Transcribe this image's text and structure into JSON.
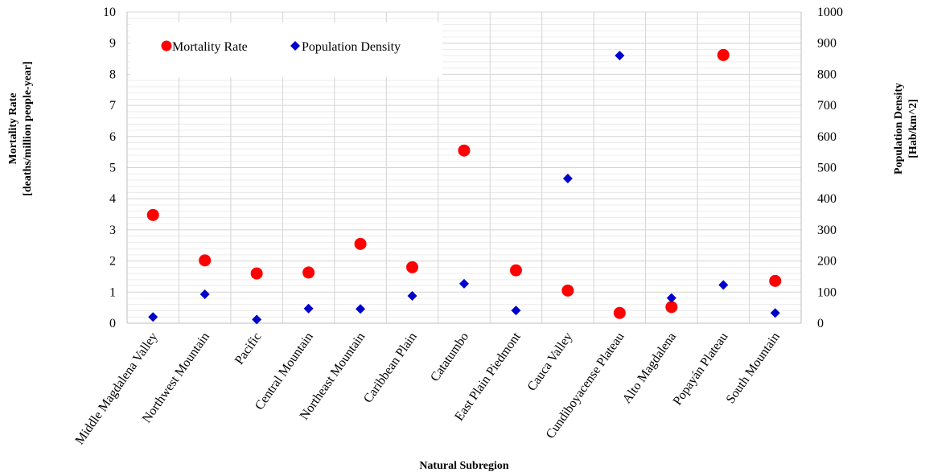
{
  "chart_data": {
    "type": "scatter",
    "categories": [
      "Middle Magdalena Valley",
      "Northwest Mountain",
      "Pacific",
      "Central Mountain",
      "Northeast Mountain",
      "Caribbean Plain",
      "Catatumbo",
      "East Plain Piedmont",
      "Cauca Valley",
      "Cundiboyacense Plateau",
      "Alto Magdalena",
      "Popayán Plateau",
      "South Mountain"
    ],
    "series": [
      {
        "name": "Mortality Rate",
        "axis": "left",
        "color": "#ff0000",
        "marker": "circle",
        "values": [
          3.48,
          2.02,
          1.6,
          1.63,
          2.55,
          1.8,
          5.55,
          1.7,
          1.05,
          0.33,
          0.52,
          8.62,
          1.36
        ]
      },
      {
        "name": "Population Density",
        "axis": "right",
        "color": "#0000cc",
        "marker": "diamond",
        "values": [
          20,
          93,
          12,
          47,
          46,
          88,
          127,
          41,
          465,
          860,
          81,
          123,
          33
        ]
      }
    ],
    "xlabel": "Natural Subregion",
    "ylabel_left_line1": "Mortality Rate",
    "ylabel_left_line2": "[deaths/million people-year]",
    "ylabel_right_line1": "Population Density",
    "ylabel_right_line2": "[Hab/km^2]",
    "ylim_left": [
      0,
      10
    ],
    "ylim_right": [
      0,
      1000
    ],
    "yticks_left": [
      "0",
      "1",
      "2",
      "3",
      "4",
      "5",
      "6",
      "7",
      "8",
      "9",
      "10"
    ],
    "yticks_right": [
      "0",
      "100",
      "200",
      "300",
      "400",
      "500",
      "600",
      "700",
      "800",
      "900",
      "1000"
    ],
    "grid": true,
    "legend_position": "top-left"
  }
}
